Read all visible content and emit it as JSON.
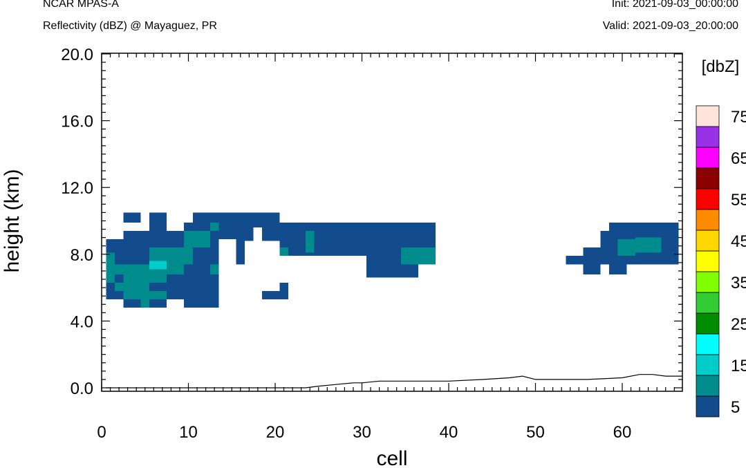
{
  "header": {
    "left_title": "NCAR MPAS-A",
    "left_subtitle": "Reflectivity (dBZ) @ Mayaguez, PR",
    "right_init": "Init: 2021-09-03_00:00:00",
    "right_valid": "Valid: 2021-09-03_20:00:00"
  },
  "chart_data": {
    "type": "heatmap",
    "title": "Reflectivity (dBZ) @ Mayaguez, PR",
    "xlabel": "cell",
    "ylabel": "height (km)",
    "xlim": [
      0,
      67
    ],
    "ylim": [
      0,
      20
    ],
    "xticks": [
      "0",
      "10",
      "20",
      "30",
      "40",
      "50",
      "60"
    ],
    "yticks": [
      "0.0",
      "4.0",
      "8.0",
      "12.0",
      "16.0",
      "20.0"
    ],
    "colorbar": {
      "unit_label": "[dbZ]",
      "tick_labels": [
        "5",
        "15",
        "25",
        "35",
        "45",
        "55",
        "65",
        "75"
      ],
      "colors": [
        "#124c8c",
        "#008c8c",
        "#00cccc",
        "#00ffff",
        "#008c00",
        "#33cc33",
        "#80ff00",
        "#ffff00",
        "#ffd700",
        "#ff8c00",
        "#ff0000",
        "#8b0000",
        "#ff00ff",
        "#9932e6",
        "#ffe4dc"
      ]
    },
    "cells": [
      {
        "x0": 2.5,
        "x1": 4.5,
        "y0": 9.9,
        "y1": 10.5,
        "dbz": 5
      },
      {
        "x0": 5.5,
        "x1": 7.5,
        "y0": 9.4,
        "y1": 10.5,
        "dbz": 5
      },
      {
        "x0": 10.5,
        "x1": 20.5,
        "y0": 9.9,
        "y1": 10.5,
        "dbz": 5
      },
      {
        "x0": 9.5,
        "x1": 38.5,
        "y0": 9.4,
        "y1": 9.9,
        "dbz": 5
      },
      {
        "x0": 2.5,
        "x1": 38.5,
        "y0": 8.9,
        "y1": 9.4,
        "dbz": 5
      },
      {
        "x0": 0.5,
        "x1": 38.5,
        "y0": 8.4,
        "y1": 8.9,
        "dbz": 5
      },
      {
        "x0": 0.5,
        "x1": 13.5,
        "y0": 4.8,
        "y1": 8.4,
        "dbz": 5
      },
      {
        "x0": 15.5,
        "x1": 16.5,
        "y0": 7.4,
        "y1": 8.4,
        "dbz": 5
      },
      {
        "x0": 20.5,
        "x1": 38.5,
        "y0": 7.9,
        "y1": 8.4,
        "dbz": 5
      },
      {
        "x0": 30.5,
        "x1": 36.5,
        "y0": 6.6,
        "y1": 7.9,
        "dbz": 5
      },
      {
        "x0": 28.5,
        "x1": 30.5,
        "y0": 6.6,
        "y1": 7.4,
        "dbz": 5
      },
      {
        "x0": 18.5,
        "x1": 21.5,
        "y0": 5.3,
        "y1": 5.8,
        "dbz": 5
      },
      {
        "x0": 20.5,
        "x1": 21.5,
        "y0": 5.8,
        "y1": 6.3,
        "dbz": 5
      },
      {
        "x0": 58.5,
        "x1": 66.5,
        "y0": 9.4,
        "y1": 9.9,
        "dbz": 5
      },
      {
        "x0": 57.5,
        "x1": 66.5,
        "y0": 8.4,
        "y1": 9.4,
        "dbz": 5
      },
      {
        "x0": 55.5,
        "x1": 66.5,
        "y0": 7.9,
        "y1": 8.4,
        "dbz": 5
      },
      {
        "x0": 53.5,
        "x1": 66.5,
        "y0": 7.4,
        "y1": 7.9,
        "dbz": 5
      },
      {
        "x0": 55.5,
        "x1": 57.5,
        "y0": 6.8,
        "y1": 7.4,
        "dbz": 5
      },
      {
        "x0": 58.5,
        "x1": 60.5,
        "y0": 6.8,
        "y1": 7.4,
        "dbz": 5
      },
      {
        "x0": 5.5,
        "x1": 10.5,
        "y0": 7.4,
        "y1": 8.4,
        "dbz": 10
      },
      {
        "x0": 9.5,
        "x1": 12.5,
        "y0": 8.4,
        "y1": 9.4,
        "dbz": 10
      },
      {
        "x0": 12.5,
        "x1": 13.5,
        "y0": 9.4,
        "y1": 9.9,
        "dbz": 10
      },
      {
        "x0": 0.5,
        "x1": 1.5,
        "y0": 6.3,
        "y1": 8.1,
        "dbz": 10
      },
      {
        "x0": 1.5,
        "x1": 9.5,
        "y0": 6.8,
        "y1": 7.4,
        "dbz": 10
      },
      {
        "x0": 2.5,
        "x1": 7.5,
        "y0": 6.3,
        "y1": 6.8,
        "dbz": 10
      },
      {
        "x0": 1.5,
        "x1": 5.5,
        "y0": 5.8,
        "y1": 6.3,
        "dbz": 10
      },
      {
        "x0": 2.5,
        "x1": 7.5,
        "y0": 5.3,
        "y1": 5.8,
        "dbz": 10
      },
      {
        "x0": 4.5,
        "x1": 5.5,
        "y0": 4.8,
        "y1": 5.3,
        "dbz": 10
      },
      {
        "x0": 12.5,
        "x1": 13.5,
        "y0": 6.8,
        "y1": 7.4,
        "dbz": 10
      },
      {
        "x0": 23.5,
        "x1": 24.5,
        "y0": 8.1,
        "y1": 9.4,
        "dbz": 10
      },
      {
        "x0": 20.5,
        "x1": 21.5,
        "y0": 7.9,
        "y1": 8.4,
        "dbz": 10
      },
      {
        "x0": 34.5,
        "x1": 38.5,
        "y0": 7.4,
        "y1": 8.4,
        "dbz": 10
      },
      {
        "x0": 59.5,
        "x1": 61.5,
        "y0": 7.9,
        "y1": 8.9,
        "dbz": 10
      },
      {
        "x0": 61.5,
        "x1": 64.5,
        "y0": 8.1,
        "y1": 9.0,
        "dbz": 10
      },
      {
        "x0": 5.5,
        "x1": 7.5,
        "y0": 7.1,
        "y1": 7.6,
        "dbz": 15
      }
    ],
    "blanks": [
      {
        "x0": 13.5,
        "x1": 15.5,
        "y0": 6.3,
        "y1": 8.9
      },
      {
        "x0": 16.5,
        "x1": 20.5,
        "y0": 6.0,
        "y1": 8.8
      },
      {
        "x0": 17.5,
        "x1": 18.5,
        "y0": 7.5,
        "y1": 9.6
      },
      {
        "x0": 21.5,
        "x1": 23.5,
        "y0": 6.0,
        "y1": 7.6
      },
      {
        "x0": 24.5,
        "x1": 30.5,
        "y0": 6.0,
        "y1": 7.6
      },
      {
        "x0": 36.5,
        "x1": 39.5,
        "y0": 6.0,
        "y1": 7.4
      },
      {
        "x0": 0.5,
        "x1": 2.5,
        "y0": 4.8,
        "y1": 5.3
      },
      {
        "x0": 7.5,
        "x1": 9.5,
        "y0": 4.8,
        "y1": 5.3
      },
      {
        "x0": 0.5,
        "x1": 2.5,
        "y0": 9.4,
        "y1": 9.9
      },
      {
        "x0": 3.5,
        "x1": 5.5,
        "y0": 9.4,
        "y1": 9.9
      }
    ],
    "terrain": {
      "x": [
        0.5,
        23.5,
        25,
        27,
        29,
        30,
        32,
        35,
        38,
        40,
        44,
        47,
        48.5,
        50,
        52,
        56,
        60,
        62,
        63.5,
        65,
        67
      ],
      "y": [
        0.0,
        0.0,
        0.1,
        0.2,
        0.3,
        0.3,
        0.4,
        0.4,
        0.4,
        0.4,
        0.5,
        0.6,
        0.7,
        0.5,
        0.5,
        0.5,
        0.6,
        0.8,
        0.8,
        0.7,
        0.7
      ]
    }
  }
}
